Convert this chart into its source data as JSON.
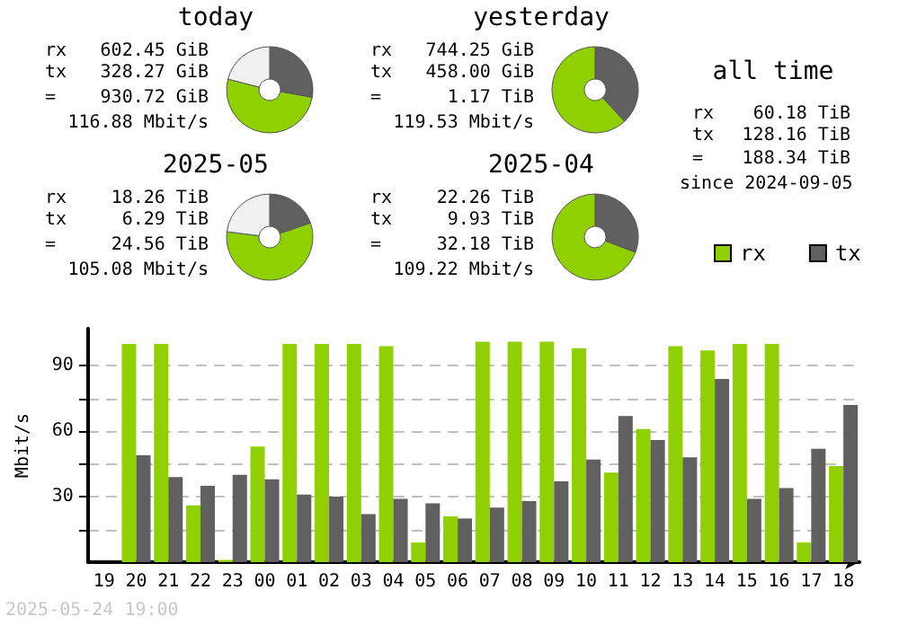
{
  "chart_data": [
    {
      "type": "donut",
      "title": "today",
      "categories": [
        null,
        null,
        null
      ],
      "values": [
        27.8,
        51.2,
        21
      ],
      "colors": [
        "#606060",
        "#90d000",
        "#f0f0f0"
      ],
      "annotations": [
        "rx 602.45 GiB",
        "tx 328.27 GiB",
        "= 930.72 GiB",
        "116.88 Mbit/s"
      ]
    },
    {
      "type": "donut",
      "title": "yesterday",
      "categories": [
        null,
        null
      ],
      "values": [
        38.1,
        61.9
      ],
      "colors": [
        "#606060",
        "#90d000"
      ],
      "annotations": [
        "rx 744.25 GiB",
        "tx 458.00 GiB",
        "= 1.17 TiB",
        "119.53 Mbit/s"
      ]
    },
    {
      "type": "donut",
      "title": "2025-05",
      "categories": [
        null,
        null,
        null
      ],
      "values": [
        19.7,
        57.3,
        23
      ],
      "colors": [
        "#606060",
        "#90d000",
        "#f0f0f0"
      ],
      "annotations": [
        "rx 18.26 TiB",
        "tx 6.29 TiB",
        "= 24.56 TiB",
        "105.08 Mbit/s"
      ]
    },
    {
      "type": "donut",
      "title": "2025-04",
      "categories": [
        null,
        null
      ],
      "values": [
        30.8,
        69.2
      ],
      "colors": [
        "#606060",
        "#90d000"
      ],
      "annotations": [
        "rx 22.26 TiB",
        "tx 9.93 TiB",
        "= 32.18 TiB",
        "109.22 Mbit/s"
      ]
    },
    {
      "type": "other",
      "title": "all time",
      "annotations": [
        "rx 60.18 TiB",
        "tx 128.16 TiB",
        "= 188.34 TiB",
        "since 2024-09-05"
      ]
    },
    {
      "type": "bar",
      "ylabel": "Mbit/s",
      "legend": "top right",
      "grid": "y",
      "categories": [
        "19",
        "20",
        "21",
        "22",
        "23",
        "00",
        "01",
        "02",
        "03",
        "04",
        "05",
        "06",
        "07",
        "08",
        "09",
        "10",
        "11",
        "12",
        "13",
        "14",
        "15",
        "16",
        "17",
        "18"
      ],
      "series": [
        {
          "name": "rx",
          "color": "#90d000",
          "values": [
            null,
            100,
            100,
            26,
            1,
            53,
            100,
            100,
            100,
            99,
            9,
            21,
            101,
            101,
            101,
            98,
            41,
            61,
            99,
            97,
            100,
            100,
            9,
            44
          ]
        },
        {
          "name": "tx",
          "color": "#606060",
          "values": [
            null,
            49,
            39,
            35,
            40,
            38,
            31,
            30,
            22,
            29,
            27,
            20,
            25,
            28,
            37,
            47,
            67,
            56,
            48,
            84,
            29,
            34,
            52,
            72
          ]
        }
      ],
      "ylim": [
        0,
        107
      ],
      "yticks": [
        {
          "value": 15,
          "label": null
        },
        30,
        {
          "value": 45,
          "label": null
        },
        60,
        {
          "value": 75,
          "label": null
        },
        90
      ],
      "annotations": [
        "2025-05-24 19:00"
      ]
    }
  ]
}
